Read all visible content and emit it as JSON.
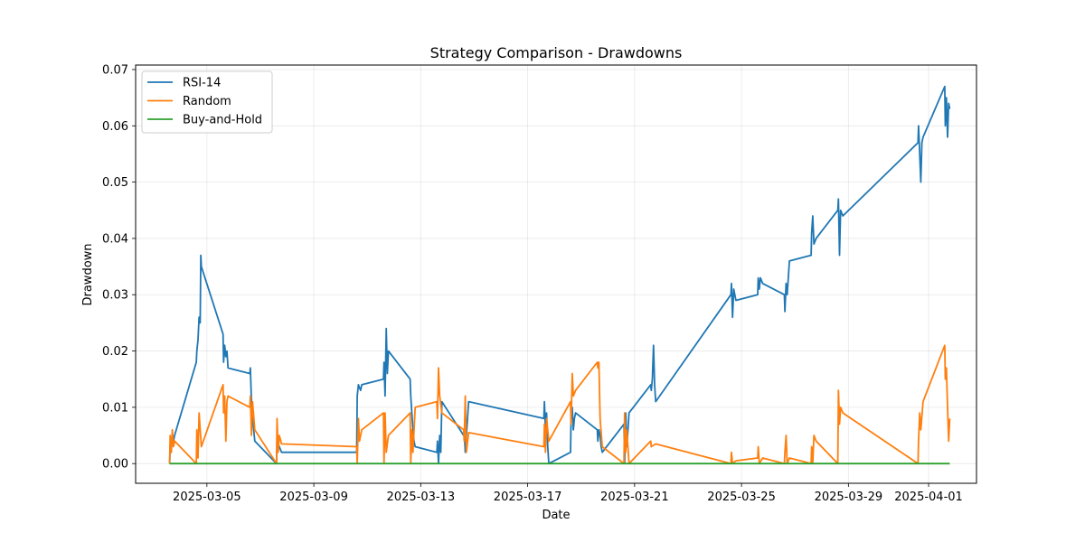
{
  "chart_data": {
    "type": "line",
    "title": "Strategy Comparison - Drawdowns",
    "xlabel": "Date",
    "ylabel": "Drawdown",
    "x_type": "date",
    "xlim": [
      "2025-03-02 08:00",
      "2025-04-02 19:00"
    ],
    "ylim": [
      -0.0035,
      0.0708
    ],
    "x_ticks": [
      "2025-03-05",
      "2025-03-09",
      "2025-03-13",
      "2025-03-17",
      "2025-03-21",
      "2025-03-25",
      "2025-03-29",
      "2025-04-01"
    ],
    "y_ticks": [
      "0.00",
      "0.01",
      "0.02",
      "0.03",
      "0.04",
      "0.05",
      "0.06",
      "0.07"
    ],
    "grid": true,
    "legend_position": "top-left",
    "series": [
      {
        "name": "RSI-14",
        "color": "#1f77b4",
        "points": [
          [
            "2025-03-03 14:30",
            0.0
          ],
          [
            "2025-03-03 15:00",
            0.003
          ],
          [
            "2025-03-03 16:00",
            0.002
          ],
          [
            "2025-03-03 17:00",
            0.005
          ],
          [
            "2025-03-03 18:00",
            0.004
          ],
          [
            "2025-03-03 19:00",
            0.005
          ],
          [
            "2025-03-04 14:30",
            0.018
          ],
          [
            "2025-03-04 15:00",
            0.02
          ],
          [
            "2025-03-04 16:00",
            0.022
          ],
          [
            "2025-03-04 17:00",
            0.026
          ],
          [
            "2025-03-04 18:00",
            0.025
          ],
          [
            "2025-03-04 18:30",
            0.037
          ],
          [
            "2025-03-04 19:00",
            0.035
          ],
          [
            "2025-03-05 14:30",
            0.023
          ],
          [
            "2025-03-05 15:00",
            0.018
          ],
          [
            "2025-03-05 16:00",
            0.021
          ],
          [
            "2025-03-05 17:00",
            0.019
          ],
          [
            "2025-03-05 18:00",
            0.02
          ],
          [
            "2025-03-05 19:00",
            0.017
          ],
          [
            "2025-03-06 14:30",
            0.016
          ],
          [
            "2025-03-06 15:00",
            0.017
          ],
          [
            "2025-03-06 16:00",
            0.011
          ],
          [
            "2025-03-06 17:00",
            0.008
          ],
          [
            "2025-03-06 18:00",
            0.006
          ],
          [
            "2025-03-06 19:00",
            0.004
          ],
          [
            "2025-03-07 14:30",
            0.0
          ],
          [
            "2025-03-07 15:00",
            0.004
          ],
          [
            "2025-03-07 17:00",
            0.003
          ],
          [
            "2025-03-07 19:00",
            0.002
          ],
          [
            "2025-03-10 14:30",
            0.002
          ],
          [
            "2025-03-10 15:00",
            0.012
          ],
          [
            "2025-03-10 16:00",
            0.014
          ],
          [
            "2025-03-10 18:00",
            0.013
          ],
          [
            "2025-03-10 19:00",
            0.014
          ],
          [
            "2025-03-11 14:30",
            0.015
          ],
          [
            "2025-03-11 15:00",
            0.018
          ],
          [
            "2025-03-11 16:00",
            0.012
          ],
          [
            "2025-03-11 17:00",
            0.024
          ],
          [
            "2025-03-11 18:00",
            0.016
          ],
          [
            "2025-03-11 19:00",
            0.02
          ],
          [
            "2025-03-12 14:30",
            0.015
          ],
          [
            "2025-03-12 15:00",
            0.012
          ],
          [
            "2025-03-12 16:00",
            0.009
          ],
          [
            "2025-03-12 17:00",
            0.006
          ],
          [
            "2025-03-12 18:00",
            0.004
          ],
          [
            "2025-03-12 19:00",
            0.003
          ],
          [
            "2025-03-13 14:30",
            0.002
          ],
          [
            "2025-03-13 15:00",
            0.004
          ],
          [
            "2025-03-13 16:00",
            0.0
          ],
          [
            "2025-03-13 17:00",
            0.005
          ],
          [
            "2025-03-13 18:00",
            0.002
          ],
          [
            "2025-03-13 19:00",
            0.011
          ],
          [
            "2025-03-14 14:30",
            0.005
          ],
          [
            "2025-03-14 15:00",
            0.006
          ],
          [
            "2025-03-14 16:00",
            0.002
          ],
          [
            "2025-03-14 19:00",
            0.011
          ],
          [
            "2025-03-17 14:30",
            0.008
          ],
          [
            "2025-03-17 15:00",
            0.011
          ],
          [
            "2025-03-17 16:00",
            0.006
          ],
          [
            "2025-03-17 17:00",
            0.009
          ],
          [
            "2025-03-17 18:00",
            0.003
          ],
          [
            "2025-03-17 19:00",
            0.0
          ],
          [
            "2025-03-18 14:30",
            0.002
          ],
          [
            "2025-03-18 15:00",
            0.008
          ],
          [
            "2025-03-18 16:00",
            0.01
          ],
          [
            "2025-03-18 17:00",
            0.006
          ],
          [
            "2025-03-18 18:00",
            0.008
          ],
          [
            "2025-03-18 19:00",
            0.009
          ],
          [
            "2025-03-19 14:30",
            0.006
          ],
          [
            "2025-03-19 15:00",
            0.004
          ],
          [
            "2025-03-19 16:00",
            0.006
          ],
          [
            "2025-03-19 17:00",
            0.005
          ],
          [
            "2025-03-19 18:00",
            0.003
          ],
          [
            "2025-03-19 19:00",
            0.002
          ],
          [
            "2025-03-20 14:30",
            0.007
          ],
          [
            "2025-03-20 15:00",
            0.0
          ],
          [
            "2025-03-20 16:00",
            0.009
          ],
          [
            "2025-03-20 17:00",
            0.003
          ],
          [
            "2025-03-20 18:00",
            0.006
          ],
          [
            "2025-03-20 19:00",
            0.009
          ],
          [
            "2025-03-21 14:30",
            0.014
          ],
          [
            "2025-03-21 15:00",
            0.013
          ],
          [
            "2025-03-21 16:00",
            0.015
          ],
          [
            "2025-03-21 17:00",
            0.021
          ],
          [
            "2025-03-21 18:00",
            0.014
          ],
          [
            "2025-03-21 19:00",
            0.011
          ],
          [
            "2025-03-24 14:30",
            0.03
          ],
          [
            "2025-03-24 15:00",
            0.032
          ],
          [
            "2025-03-24 16:00",
            0.026
          ],
          [
            "2025-03-24 17:00",
            0.031
          ],
          [
            "2025-03-24 19:00",
            0.029
          ],
          [
            "2025-03-25 14:30",
            0.03
          ],
          [
            "2025-03-25 15:00",
            0.033
          ],
          [
            "2025-03-25 16:00",
            0.031
          ],
          [
            "2025-03-25 17:00",
            0.033
          ],
          [
            "2025-03-25 19:00",
            0.032
          ],
          [
            "2025-03-26 14:30",
            0.03
          ],
          [
            "2025-03-26 15:00",
            0.027
          ],
          [
            "2025-03-26 16:00",
            0.032
          ],
          [
            "2025-03-26 17:00",
            0.03
          ],
          [
            "2025-03-26 19:00",
            0.036
          ],
          [
            "2025-03-27 14:30",
            0.037
          ],
          [
            "2025-03-27 15:00",
            0.041
          ],
          [
            "2025-03-27 16:00",
            0.044
          ],
          [
            "2025-03-27 17:00",
            0.039
          ],
          [
            "2025-03-27 19:00",
            0.04
          ],
          [
            "2025-03-28 14:30",
            0.045
          ],
          [
            "2025-03-28 15:00",
            0.047
          ],
          [
            "2025-03-28 16:00",
            0.037
          ],
          [
            "2025-03-28 17:00",
            0.045
          ],
          [
            "2025-03-28 19:00",
            0.044
          ],
          [
            "2025-03-31 14:30",
            0.057
          ],
          [
            "2025-03-31 15:00",
            0.06
          ],
          [
            "2025-03-31 16:00",
            0.055
          ],
          [
            "2025-03-31 17:00",
            0.05
          ],
          [
            "2025-03-31 18:00",
            0.057
          ],
          [
            "2025-03-31 19:00",
            0.058
          ],
          [
            "2025-04-01 14:30",
            0.067
          ],
          [
            "2025-04-01 15:00",
            0.06
          ],
          [
            "2025-04-01 16:00",
            0.065
          ],
          [
            "2025-04-01 17:00",
            0.058
          ],
          [
            "2025-04-01 18:00",
            0.064
          ],
          [
            "2025-04-01 19:00",
            0.063
          ]
        ]
      },
      {
        "name": "Random",
        "color": "#ff7f0e",
        "points": [
          [
            "2025-03-03 14:30",
            0.0
          ],
          [
            "2025-03-03 15:00",
            0.005
          ],
          [
            "2025-03-03 16:00",
            0.002
          ],
          [
            "2025-03-03 17:00",
            0.006
          ],
          [
            "2025-03-03 18:00",
            0.003
          ],
          [
            "2025-03-03 19:00",
            0.004
          ],
          [
            "2025-03-04 14:30",
            0.0
          ],
          [
            "2025-03-04 15:00",
            0.006
          ],
          [
            "2025-03-04 16:00",
            0.001
          ],
          [
            "2025-03-04 17:00",
            0.009
          ],
          [
            "2025-03-04 19:00",
            0.003
          ],
          [
            "2025-03-05 14:30",
            0.014
          ],
          [
            "2025-03-05 15:00",
            0.009
          ],
          [
            "2025-03-05 16:00",
            0.012
          ],
          [
            "2025-03-05 17:00",
            0.004
          ],
          [
            "2025-03-05 18:00",
            0.011
          ],
          [
            "2025-03-05 19:00",
            0.012
          ],
          [
            "2025-03-06 14:30",
            0.01
          ],
          [
            "2025-03-06 15:00",
            0.012
          ],
          [
            "2025-03-06 16:00",
            0.005
          ],
          [
            "2025-03-06 17:00",
            0.011
          ],
          [
            "2025-03-06 19:00",
            0.006
          ],
          [
            "2025-03-07 14:30",
            0.0
          ],
          [
            "2025-03-07 15:00",
            0.008
          ],
          [
            "2025-03-07 16:00",
            0.002
          ],
          [
            "2025-03-07 17:00",
            0.005
          ],
          [
            "2025-03-07 19:00",
            0.0035
          ],
          [
            "2025-03-10 14:30",
            0.003
          ],
          [
            "2025-03-10 15:00",
            0.0
          ],
          [
            "2025-03-10 16:00",
            0.008
          ],
          [
            "2025-03-10 17:00",
            0.004
          ],
          [
            "2025-03-10 19:00",
            0.006
          ],
          [
            "2025-03-11 14:30",
            0.009
          ],
          [
            "2025-03-11 15:00",
            0.0
          ],
          [
            "2025-03-11 16:00",
            0.009
          ],
          [
            "2025-03-11 17:00",
            0.002
          ],
          [
            "2025-03-11 19:00",
            0.005
          ],
          [
            "2025-03-12 14:30",
            0.009
          ],
          [
            "2025-03-12 15:00",
            0.0
          ],
          [
            "2025-03-12 16:00",
            0.006
          ],
          [
            "2025-03-12 17:00",
            0.002
          ],
          [
            "2025-03-12 19:00",
            0.01
          ],
          [
            "2025-03-13 14:30",
            0.011
          ],
          [
            "2025-03-13 15:00",
            0.008
          ],
          [
            "2025-03-13 16:00",
            0.017
          ],
          [
            "2025-03-13 17:00",
            0.012
          ],
          [
            "2025-03-13 19:00",
            0.009
          ],
          [
            "2025-03-14 14:30",
            0.006
          ],
          [
            "2025-03-14 15:00",
            0.004
          ],
          [
            "2025-03-14 16:00",
            0.012
          ],
          [
            "2025-03-14 17:00",
            0.002
          ],
          [
            "2025-03-14 19:00",
            0.0055
          ],
          [
            "2025-03-17 14:30",
            0.003
          ],
          [
            "2025-03-17 15:00",
            0.007
          ],
          [
            "2025-03-17 16:00",
            0.002
          ],
          [
            "2025-03-17 17:00",
            0.008
          ],
          [
            "2025-03-17 19:00",
            0.004
          ],
          [
            "2025-03-18 14:30",
            0.011
          ],
          [
            "2025-03-18 15:00",
            0.007
          ],
          [
            "2025-03-18 16:00",
            0.016
          ],
          [
            "2025-03-18 17:00",
            0.012
          ],
          [
            "2025-03-18 19:00",
            0.013
          ],
          [
            "2025-03-19 14:30",
            0.018
          ],
          [
            "2025-03-19 15:00",
            0.017
          ],
          [
            "2025-03-19 16:00",
            0.018
          ],
          [
            "2025-03-19 17:00",
            0.008
          ],
          [
            "2025-03-19 19:00",
            0.003
          ],
          [
            "2025-03-20 14:30",
            0.0
          ],
          [
            "2025-03-20 15:00",
            0.009
          ],
          [
            "2025-03-20 16:00",
            0.002
          ],
          [
            "2025-03-20 17:00",
            0.006
          ],
          [
            "2025-03-20 19:00",
            0.0
          ],
          [
            "2025-03-21 14:30",
            0.004
          ],
          [
            "2025-03-21 15:00",
            0.003
          ],
          [
            "2025-03-21 19:00",
            0.0035
          ],
          [
            "2025-03-24 14:30",
            0.0
          ],
          [
            "2025-03-24 15:00",
            0.002
          ],
          [
            "2025-03-24 16:00",
            0.0
          ],
          [
            "2025-03-24 19:00",
            0.0005
          ],
          [
            "2025-03-25 14:30",
            0.001
          ],
          [
            "2025-03-25 15:00",
            0.003
          ],
          [
            "2025-03-25 16:00",
            0.0
          ],
          [
            "2025-03-25 19:00",
            0.001
          ],
          [
            "2025-03-26 14:30",
            0.0
          ],
          [
            "2025-03-26 15:00",
            0.002
          ],
          [
            "2025-03-26 16:00",
            0.005
          ],
          [
            "2025-03-26 17:00",
            0.0
          ],
          [
            "2025-03-26 19:00",
            0.001
          ],
          [
            "2025-03-27 14:30",
            0.0
          ],
          [
            "2025-03-27 15:00",
            0.003
          ],
          [
            "2025-03-27 16:00",
            0.0
          ],
          [
            "2025-03-27 17:00",
            0.005
          ],
          [
            "2025-03-27 19:00",
            0.004
          ],
          [
            "2025-03-28 14:30",
            0.0
          ],
          [
            "2025-03-28 15:00",
            0.013
          ],
          [
            "2025-03-28 16:00",
            0.007
          ],
          [
            "2025-03-28 17:00",
            0.01
          ],
          [
            "2025-03-28 19:00",
            0.009
          ],
          [
            "2025-03-31 14:30",
            0.0
          ],
          [
            "2025-03-31 15:00",
            0.004
          ],
          [
            "2025-03-31 16:00",
            0.009
          ],
          [
            "2025-03-31 17:00",
            0.006
          ],
          [
            "2025-03-31 19:00",
            0.011
          ],
          [
            "2025-04-01 14:30",
            0.021
          ],
          [
            "2025-04-01 15:00",
            0.015
          ],
          [
            "2025-04-01 16:00",
            0.017
          ],
          [
            "2025-04-01 17:00",
            0.01
          ],
          [
            "2025-04-01 18:00",
            0.004
          ],
          [
            "2025-04-01 19:00",
            0.008
          ]
        ]
      },
      {
        "name": "Buy-and-Hold",
        "color": "#2ca02c",
        "points": [
          [
            "2025-03-03 14:30",
            0.0
          ],
          [
            "2025-04-01 19:00",
            0.0
          ]
        ]
      }
    ]
  }
}
